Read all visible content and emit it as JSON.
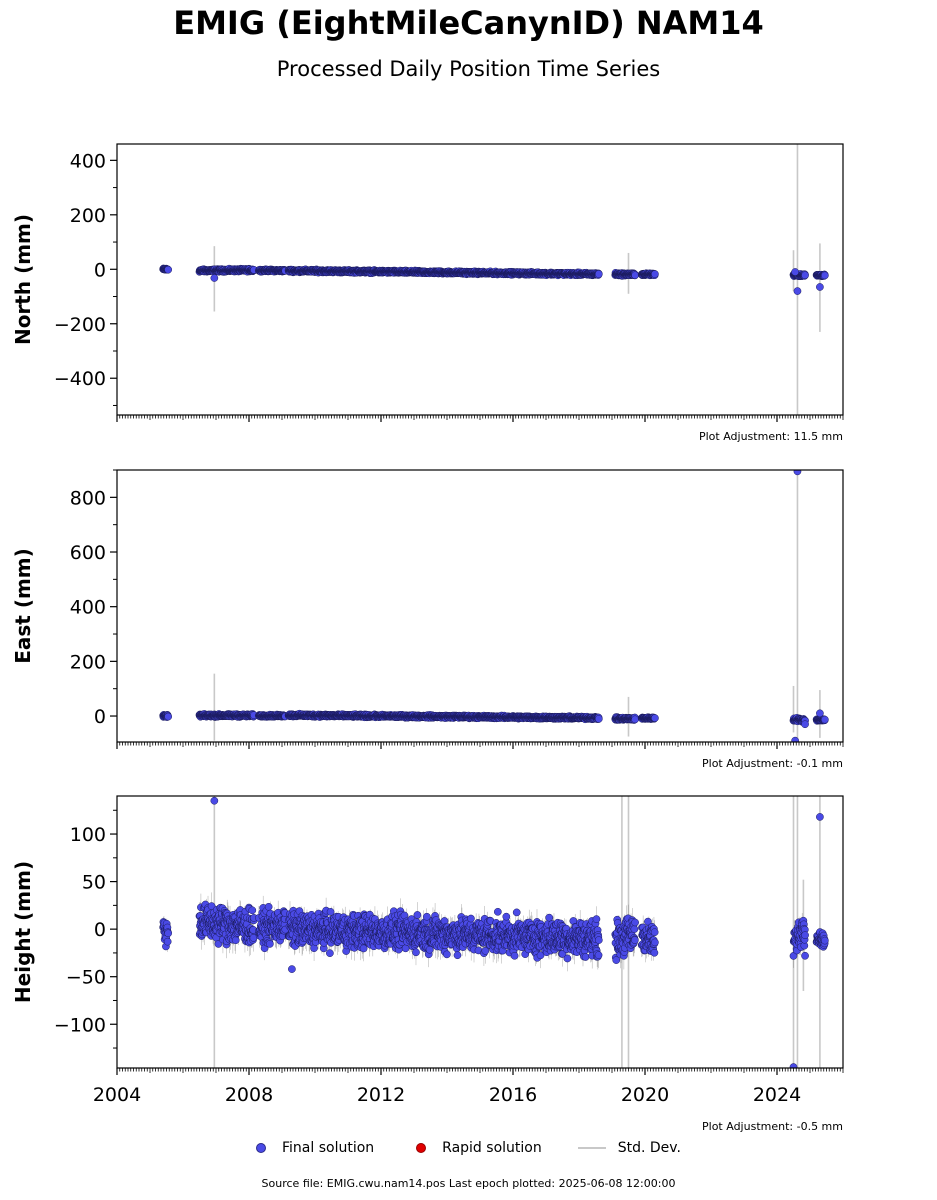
{
  "title": "EMIG (EightMileCanynID) NAM14",
  "subtitle": "Processed Daily Position Time Series",
  "legend": {
    "final": "Final solution",
    "rapid": "Rapid solution",
    "std": "Std. Dev."
  },
  "footer": "Source file: EMIG.cwu.nam14.pos  Last epoch plotted: 2025-06-08 12:00:00",
  "colors": {
    "final_fill": "#4a4ae6",
    "final_edge": "#1a1a5a",
    "rapid": "#e00000",
    "std": "#c8c8c8",
    "std_dark": "#555555"
  },
  "chart_data": [
    {
      "type": "scatter",
      "ylabel": "North (mm)",
      "adjustment": "Plot Adjustment: 11.5 mm",
      "xlim": [
        2004,
        2026
      ],
      "ylim": [
        -535,
        460
      ],
      "yticks": [
        400,
        200,
        0,
        -200,
        -400
      ],
      "ytick_labels": [
        "400",
        "200",
        "0",
        "−200",
        "−400"
      ],
      "xticks": [
        2004,
        2008,
        2012,
        2016,
        2020,
        2024
      ],
      "show_xtick_labels": false,
      "trend_segments": [
        {
          "x0": 2005.4,
          "x1": 2005.55,
          "y0": 0,
          "y1": 0,
          "noise": 3
        },
        {
          "x0": 2006.5,
          "x1": 2008.15,
          "y0": -5,
          "y1": -3,
          "noise": 4
        },
        {
          "x0": 2008.3,
          "x1": 2009.1,
          "y0": -4,
          "y1": -5,
          "noise": 3
        },
        {
          "x0": 2009.2,
          "x1": 2018.6,
          "y0": -5,
          "y1": -18,
          "noise": 4
        },
        {
          "x0": 2019.1,
          "x1": 2019.7,
          "y0": -18,
          "y1": -19,
          "noise": 4
        },
        {
          "x0": 2019.9,
          "x1": 2020.3,
          "y0": -18,
          "y1": -19,
          "noise": 3
        },
        {
          "x0": 2024.5,
          "x1": 2024.85,
          "y0": -20,
          "y1": -22,
          "noise": 4
        },
        {
          "x0": 2025.2,
          "x1": 2025.45,
          "y0": -22,
          "y1": -22,
          "noise": 3
        }
      ],
      "outliers": [
        {
          "x": 2006.95,
          "y": -32
        },
        {
          "x": 2024.62,
          "y": -80
        },
        {
          "x": 2025.3,
          "y": -65
        },
        {
          "x": 2024.55,
          "y": -10
        }
      ],
      "std_bars": [
        {
          "x": 2006.95,
          "y0": -155,
          "y1": 85
        },
        {
          "x": 2019.5,
          "y0": -90,
          "y1": 60
        },
        {
          "x": 2024.62,
          "y0": -535,
          "y1": 460
        },
        {
          "x": 2024.5,
          "y0": -80,
          "y1": 70
        },
        {
          "x": 2025.3,
          "y0": -230,
          "y1": 95
        }
      ]
    },
    {
      "type": "scatter",
      "ylabel": "East (mm)",
      "adjustment": "Plot Adjustment: -0.1 mm",
      "xlim": [
        2004,
        2026
      ],
      "ylim": [
        -95,
        900
      ],
      "yticks": [
        800,
        600,
        400,
        200,
        0
      ],
      "ytick_labels": [
        "800",
        "600",
        "400",
        "200",
        "0"
      ],
      "xticks": [
        2004,
        2008,
        2012,
        2016,
        2020,
        2024
      ],
      "show_xtick_labels": false,
      "trend_segments": [
        {
          "x0": 2005.4,
          "x1": 2005.55,
          "y0": 0,
          "y1": 0,
          "noise": 3
        },
        {
          "x0": 2006.5,
          "x1": 2008.15,
          "y0": 2,
          "y1": 2,
          "noise": 4
        },
        {
          "x0": 2008.3,
          "x1": 2009.1,
          "y0": 1,
          "y1": 1,
          "noise": 3
        },
        {
          "x0": 2009.2,
          "x1": 2018.6,
          "y0": 3,
          "y1": -7,
          "noise": 4
        },
        {
          "x0": 2019.1,
          "x1": 2019.7,
          "y0": -10,
          "y1": -10,
          "noise": 4
        },
        {
          "x0": 2019.9,
          "x1": 2020.3,
          "y0": -8,
          "y1": -8,
          "noise": 3
        },
        {
          "x0": 2024.5,
          "x1": 2024.85,
          "y0": -12,
          "y1": -15,
          "noise": 5
        },
        {
          "x0": 2025.2,
          "x1": 2025.45,
          "y0": -14,
          "y1": -14,
          "noise": 3
        }
      ],
      "outliers": [
        {
          "x": 2024.62,
          "y": 895
        },
        {
          "x": 2024.55,
          "y": -90
        },
        {
          "x": 2024.85,
          "y": -30
        },
        {
          "x": 2025.3,
          "y": 10
        }
      ],
      "std_bars": [
        {
          "x": 2006.95,
          "y0": -90,
          "y1": 155
        },
        {
          "x": 2019.5,
          "y0": -75,
          "y1": 70
        },
        {
          "x": 2024.62,
          "y0": -95,
          "y1": 900
        },
        {
          "x": 2024.5,
          "y0": -60,
          "y1": 110
        },
        {
          "x": 2025.3,
          "y0": -80,
          "y1": 95
        }
      ]
    },
    {
      "type": "scatter",
      "ylabel": "Height (mm)",
      "adjustment": "Plot Adjustment: -0.5 mm",
      "xlim": [
        2004,
        2026
      ],
      "ylim": [
        -146,
        140
      ],
      "yticks": [
        100,
        50,
        0,
        -50,
        -100
      ],
      "ytick_labels": [
        "100",
        "50",
        "0",
        "−50",
        "−100"
      ],
      "xticks": [
        2004,
        2008,
        2012,
        2016,
        2020,
        2024
      ],
      "xtick_labels": [
        "2004",
        "2008",
        "2012",
        "2016",
        "2020",
        "2024"
      ],
      "show_xtick_labels": true,
      "trend_segments": [
        {
          "x0": 2005.4,
          "x1": 2005.55,
          "y0": 0,
          "y1": -5,
          "noise": 12
        },
        {
          "x0": 2006.5,
          "x1": 2008.15,
          "y0": 8,
          "y1": 2,
          "noise": 16
        },
        {
          "x0": 2008.3,
          "x1": 2009.1,
          "y0": 0,
          "y1": 5,
          "noise": 14
        },
        {
          "x0": 2009.2,
          "x1": 2018.6,
          "y0": 0,
          "y1": -10,
          "noise": 15
        },
        {
          "x0": 2019.1,
          "x1": 2019.7,
          "y0": -12,
          "y1": -5,
          "noise": 16
        },
        {
          "x0": 2019.9,
          "x1": 2020.3,
          "y0": -5,
          "y1": -15,
          "noise": 14
        },
        {
          "x0": 2024.5,
          "x1": 2024.85,
          "y0": -15,
          "y1": 5,
          "noise": 14
        },
        {
          "x0": 2025.2,
          "x1": 2025.45,
          "y0": -8,
          "y1": -12,
          "noise": 6
        }
      ],
      "outliers": [
        {
          "x": 2006.95,
          "y": 135
        },
        {
          "x": 2009.3,
          "y": -42
        },
        {
          "x": 2025.3,
          "y": 118
        },
        {
          "x": 2024.85,
          "y": -28
        },
        {
          "x": 2024.5,
          "y": -145
        }
      ],
      "std_bars": [
        {
          "x": 2006.95,
          "y0": -146,
          "y1": 140
        },
        {
          "x": 2019.3,
          "y0": -146,
          "y1": 140
        },
        {
          "x": 2019.5,
          "y0": -146,
          "y1": 140
        },
        {
          "x": 2024.5,
          "y0": -146,
          "y1": 140
        },
        {
          "x": 2024.62,
          "y0": -146,
          "y1": 140
        },
        {
          "x": 2024.8,
          "y0": -65,
          "y1": 52
        },
        {
          "x": 2025.3,
          "y0": -146,
          "y1": 140
        }
      ]
    }
  ]
}
